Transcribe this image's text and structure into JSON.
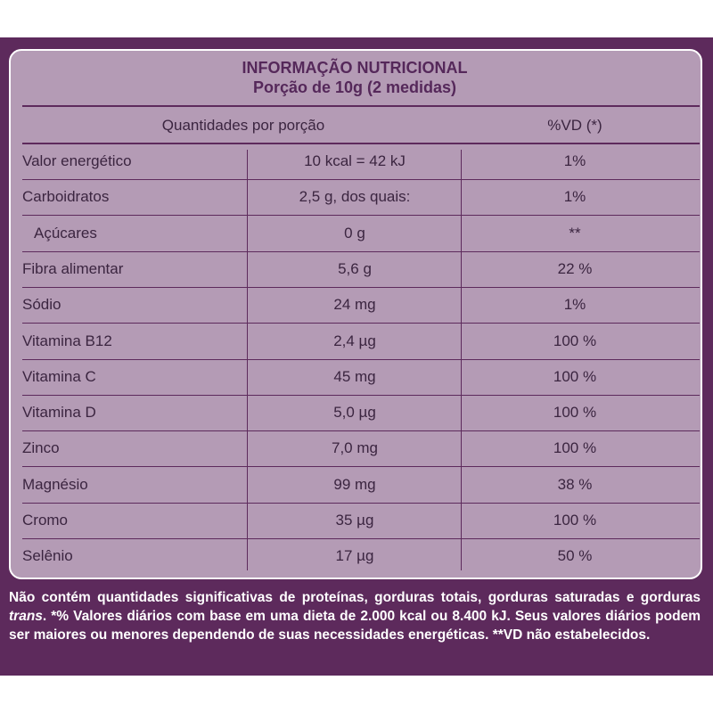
{
  "title": "INFORMAÇÃO NUTRICIONAL",
  "subtitle": "Porção de 10g (2 medidas)",
  "header": {
    "quantity": "Quantidades por porção",
    "dv": "%VD (*)"
  },
  "table": {
    "rows": [
      [
        "Valor energético",
        "10 kcal = 42 kJ",
        "1%"
      ],
      [
        "Carboidratos",
        "2,5 g, dos quais:",
        "1%"
      ],
      [
        "Açúcares",
        "0 g",
        "**"
      ],
      [
        "Fibra alimentar",
        "5,6 g",
        "22 %"
      ],
      [
        "Sódio",
        "24 mg",
        "1%"
      ],
      [
        "Vitamina B12",
        "2,4 µg",
        "100 %"
      ],
      [
        "Vitamina C",
        "45 mg",
        "100 %"
      ],
      [
        "Vitamina D",
        "5,0 µg",
        "100 %"
      ],
      [
        "Zinco",
        "7,0 mg",
        "100 %"
      ],
      [
        "Magnésio",
        "99 mg",
        "38 %"
      ],
      [
        "Cromo",
        "35 µg",
        "100 %"
      ],
      [
        "Selênio",
        "17 µg",
        "50 %"
      ]
    ]
  },
  "footnote": [
    "Não contém quantidades significativas de proteínas, gorduras totais, gorduras saturadas e gorduras ",
    "trans",
    ". *% Valores diários com base em uma dieta de 2.000 kcal ou 8.400 kJ. Seus valores diários podem ser maiores ou menores dependendo de suas necessidades energéticas. **VD não estabelecidos."
  ]
}
